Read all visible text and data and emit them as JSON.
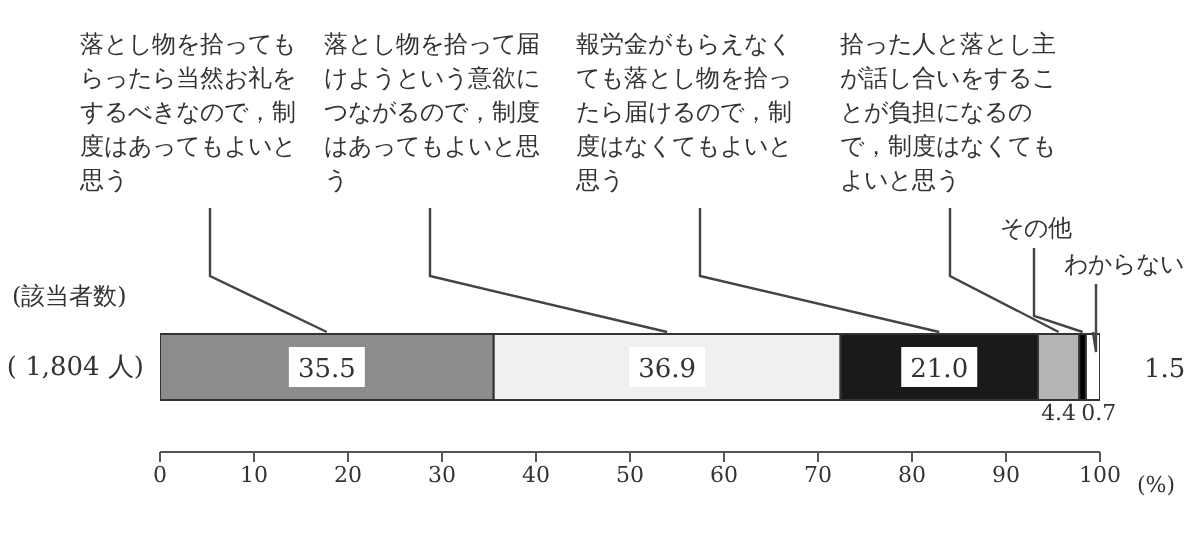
{
  "chart_data": {
    "type": "bar",
    "orientation": "horizontal",
    "stacked": true,
    "ylabel": "(該当者数)",
    "xlabel": "(%)",
    "categories": [
      "( 1,804 人)"
    ],
    "series": [
      {
        "name": "落とし物を拾ってもらったら当然お礼をするべきなので，制度はあってもよいと思う",
        "color": "#8c8c8c",
        "values": [
          35.5
        ],
        "value_labels": [
          "35.5"
        ]
      },
      {
        "name": "落とし物を拾って届けようという意欲につながるので，制度はあってもよいと思う",
        "color": "#f0f0f0",
        "values": [
          36.9
        ],
        "value_labels": [
          "36.9"
        ]
      },
      {
        "name": "報労金がもらえなくても落とし物を拾ったら届けるので，制度はなくてもよいと思う",
        "color": "#1a1a1a",
        "values": [
          21.0
        ],
        "value_labels": [
          "21.0"
        ]
      },
      {
        "name": "拾った人と落とし主が話し合いをすることが負担になるので，制度はなくてもよいと思う",
        "color": "#b5b5b5",
        "values": [
          4.4
        ],
        "value_labels": [
          "4.4"
        ]
      },
      {
        "name": "その他",
        "color": "#000000",
        "values": [
          0.7
        ],
        "value_labels": [
          "0.7"
        ]
      },
      {
        "name": "わからない",
        "color": "#ffffff",
        "values": [
          1.5
        ],
        "value_labels": [
          "1.5"
        ]
      }
    ],
    "xlim": [
      0,
      100
    ],
    "xticks": [
      0,
      10,
      20,
      30,
      40,
      50,
      60,
      70,
      80,
      90,
      100
    ],
    "legend": false
  }
}
